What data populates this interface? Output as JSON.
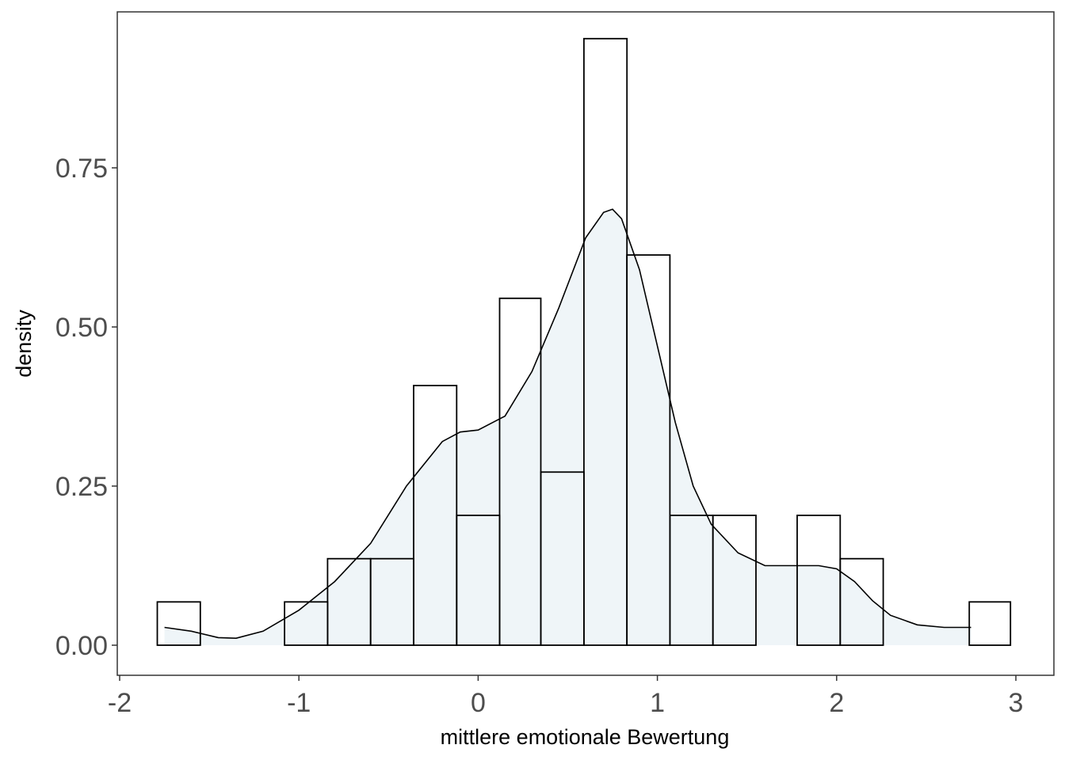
{
  "chart_data": {
    "type": "bar",
    "subtype": "histogram-with-density",
    "title": "",
    "xlabel": "mittlere emotionale Bewertung",
    "ylabel": "density",
    "xlim": [
      -2.0,
      3.0
    ],
    "ylim": [
      0,
      0.95
    ],
    "x_ticks": [
      -2,
      -1,
      0,
      1,
      2,
      3
    ],
    "x_tick_labels": [
      "-2",
      "-1",
      "0",
      "1",
      "2",
      "3"
    ],
    "y_ticks": [
      0.0,
      0.25,
      0.5,
      0.75
    ],
    "y_tick_labels": [
      "0.00",
      "0.25",
      "0.50",
      "0.75"
    ],
    "grid": false,
    "legend": "none",
    "bin_width": 0.238,
    "bins": [
      {
        "x0": -1.79,
        "x1": -1.55,
        "density": 0.068
      },
      {
        "x0": -1.55,
        "x1": -1.31,
        "density": 0.0
      },
      {
        "x0": -1.31,
        "x1": -1.08,
        "density": 0.0
      },
      {
        "x0": -1.08,
        "x1": -0.84,
        "density": 0.068
      },
      {
        "x0": -0.84,
        "x1": -0.6,
        "density": 0.136
      },
      {
        "x0": -0.6,
        "x1": -0.36,
        "density": 0.136
      },
      {
        "x0": -0.36,
        "x1": -0.12,
        "density": 0.408
      },
      {
        "x0": -0.12,
        "x1": 0.12,
        "density": 0.204
      },
      {
        "x0": 0.12,
        "x1": 0.35,
        "density": 0.545
      },
      {
        "x0": 0.35,
        "x1": 0.59,
        "density": 0.272
      },
      {
        "x0": 0.59,
        "x1": 0.83,
        "density": 0.953
      },
      {
        "x0": 0.83,
        "x1": 1.07,
        "density": 0.613
      },
      {
        "x0": 1.07,
        "x1": 1.31,
        "density": 0.204
      },
      {
        "x0": 1.31,
        "x1": 1.55,
        "density": 0.204
      },
      {
        "x0": 1.55,
        "x1": 1.78,
        "density": 0.0
      },
      {
        "x0": 1.78,
        "x1": 2.02,
        "density": 0.204
      },
      {
        "x0": 2.02,
        "x1": 2.26,
        "density": 0.136
      },
      {
        "x0": 2.26,
        "x1": 2.5,
        "density": 0.0
      },
      {
        "x0": 2.5,
        "x1": 2.74,
        "density": 0.0
      },
      {
        "x0": 2.74,
        "x1": 2.97,
        "density": 0.068
      }
    ],
    "density_curve": {
      "x": [
        -1.75,
        -1.6,
        -1.45,
        -1.35,
        -1.2,
        -1.0,
        -0.8,
        -0.6,
        -0.4,
        -0.2,
        -0.1,
        0.0,
        0.15,
        0.3,
        0.45,
        0.6,
        0.7,
        0.75,
        0.8,
        0.9,
        1.0,
        1.1,
        1.2,
        1.3,
        1.45,
        1.6,
        1.75,
        1.9,
        2.0,
        2.1,
        2.2,
        2.3,
        2.45,
        2.6,
        2.75
      ],
      "y": [
        0.028,
        0.022,
        0.012,
        0.011,
        0.022,
        0.055,
        0.1,
        0.16,
        0.25,
        0.32,
        0.335,
        0.338,
        0.36,
        0.43,
        0.53,
        0.64,
        0.68,
        0.685,
        0.67,
        0.59,
        0.47,
        0.35,
        0.25,
        0.19,
        0.145,
        0.125,
        0.125,
        0.125,
        0.12,
        0.1,
        0.07,
        0.047,
        0.032,
        0.028,
        0.028
      ]
    },
    "colors": {
      "bar_fill": "#ffffff",
      "bar_stroke": "#000000",
      "density_fill": "#e6f0f5",
      "density_line": "#000000",
      "panel_border": "#333333"
    }
  }
}
